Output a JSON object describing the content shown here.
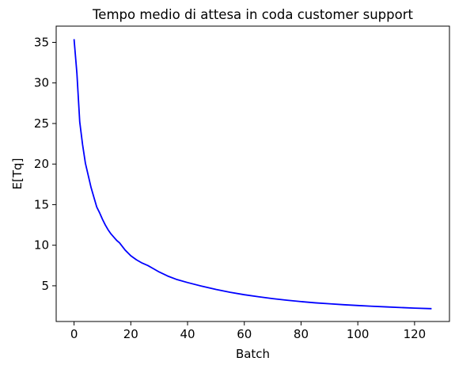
{
  "chart_data": {
    "type": "line",
    "title": "Tempo medio di attesa in coda customer support",
    "xlabel": "Batch",
    "ylabel": "E[Tq]",
    "xlim": [
      -6.3,
      132.3
    ],
    "ylim": [
      0.6,
      37.0
    ],
    "xticks": [
      0,
      20,
      40,
      60,
      80,
      100,
      120
    ],
    "yticks": [
      5,
      10,
      15,
      20,
      25,
      30,
      35
    ],
    "grid": false,
    "legend": "none",
    "series": [
      {
        "color": "#0000ff",
        "x": [
          0,
          1,
          2,
          3,
          4,
          5,
          6,
          7,
          8,
          9,
          10,
          11,
          12,
          13,
          14,
          15,
          16,
          18,
          20,
          22,
          24,
          26,
          28,
          30,
          33,
          36,
          40,
          45,
          50,
          55,
          60,
          65,
          70,
          75,
          80,
          85,
          90,
          95,
          100,
          105,
          110,
          115,
          120,
          126
        ],
        "y": [
          35.4,
          31.2,
          25.2,
          22.4,
          20.1,
          18.6,
          17.1,
          15.9,
          14.7,
          14.0,
          13.2,
          12.5,
          11.9,
          11.4,
          11.0,
          10.6,
          10.3,
          9.4,
          8.7,
          8.2,
          7.8,
          7.5,
          7.1,
          6.7,
          6.2,
          5.8,
          5.4,
          4.95,
          4.55,
          4.2,
          3.9,
          3.65,
          3.42,
          3.22,
          3.05,
          2.9,
          2.78,
          2.67,
          2.57,
          2.48,
          2.4,
          2.32,
          2.25,
          2.18
        ]
      }
    ]
  }
}
